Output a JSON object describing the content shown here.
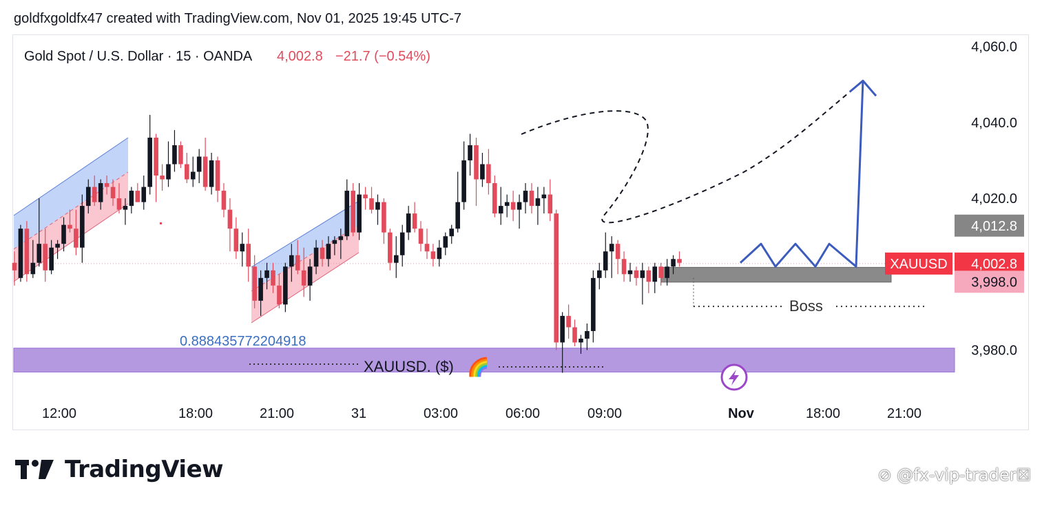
{
  "attribution": "goldfxgoldfx47 created with TradingView.com, Nov 01, 2025 19:45 UTC-7",
  "brand": {
    "name": "TradingView",
    "logo_icon": "tradingview-logo-icon"
  },
  "watermark": "⊘ @fx-vip-trader☒",
  "colors": {
    "up": "#131722",
    "down": "#e14b5c",
    "plan_line": "#3b5bbd",
    "purple_zone": "#b499e0",
    "grey_zone": "#8a8a8a",
    "price_tag": "#f23645",
    "label_pink": "#f6a9bd",
    "axis_tag_grey": "#868686"
  },
  "chart_data": {
    "type": "candlestick",
    "symbol_line": {
      "name": "Gold Spot / U.S. Dollar · 15 · OANDA",
      "last": "4,002.8",
      "change": "−21.7 (−0.54%)"
    },
    "y_axis": {
      "ticks": [
        3980,
        4020,
        4040,
        4060
      ],
      "tick_labels": [
        "3,980.0",
        "4,020.0",
        "4,040.0",
        "4,060.0"
      ],
      "range": [
        3971,
        4069
      ]
    },
    "x_axis": {
      "ticks": [
        "12:00",
        "18:00",
        "21:00",
        "31",
        "03:00",
        "06:00",
        "09:00",
        "Nov",
        "18:00",
        "21:00"
      ]
    },
    "price_tags": [
      {
        "value": 4012.8,
        "label": "4,012.8",
        "style": "grey"
      },
      {
        "value": 4002.8,
        "label": "4,002.8",
        "style": "red",
        "symbol": "XAUUSD"
      },
      {
        "value": 3998.0,
        "label": "3,998.0",
        "style": "pink"
      }
    ],
    "candles": [
      [
        4003,
        4006,
        3997,
        4001
      ],
      [
        3999,
        4013,
        3998,
        4012
      ],
      [
        4012,
        4014,
        3998,
        4000
      ],
      [
        4000,
        4009,
        3999,
        4003
      ],
      [
        4003,
        4020,
        4002,
        4008
      ],
      [
        4008,
        4012,
        3998,
        4001
      ],
      [
        4001,
        4009,
        4000,
        4007
      ],
      [
        4007,
        4009,
        4004,
        4008
      ],
      [
        4008,
        4015,
        4006,
        4013
      ],
      [
        4013,
        4017,
        4011,
        4012
      ],
      [
        4012,
        4017,
        4005,
        4007
      ],
      [
        4007,
        4021,
        4003,
        4018
      ],
      [
        4018,
        4025,
        4016,
        4023
      ],
      [
        4023,
        4026,
        4018,
        4019
      ],
      [
        4019,
        4025,
        4017,
        4024
      ],
      [
        4024,
        4026,
        4021,
        4023
      ],
      [
        4023,
        4025,
        4018,
        4020
      ],
      [
        4020,
        4024,
        4016,
        4017
      ],
      [
        4017,
        4020,
        4013,
        4018
      ],
      [
        4018,
        4023,
        4016,
        4022
      ],
      [
        4022,
        4024,
        4019,
        4019
      ],
      [
        4019,
        4026,
        4017,
        4023
      ],
      [
        4023,
        4042,
        4021,
        4036
      ],
      [
        4036,
        4037,
        4019,
        4026
      ],
      [
        4026,
        4029,
        4022,
        4025
      ],
      [
        4025,
        4035,
        4023,
        4029
      ],
      [
        4029,
        4038,
        4027,
        4034
      ],
      [
        4034,
        4035,
        4028,
        4029
      ],
      [
        4029,
        4032,
        4024,
        4025
      ],
      [
        4025,
        4031,
        4023,
        4027
      ],
      [
        4027,
        4033,
        4024,
        4031
      ],
      [
        4031,
        4036,
        4022,
        4023
      ],
      [
        4023,
        4032,
        4021,
        4030
      ],
      [
        4030,
        4031,
        4019,
        4022
      ],
      [
        4022,
        4024,
        4015,
        4017
      ],
      [
        4017,
        4020,
        4006,
        4012
      ],
      [
        4012,
        4015,
        4004,
        4006
      ],
      [
        4006,
        4011,
        4002,
        4008
      ],
      [
        4008,
        4012,
        3998,
        4002
      ],
      [
        4002,
        4005,
        3991,
        3993
      ],
      [
        3993,
        4001,
        3989,
        3999
      ],
      [
        3999,
        4003,
        3996,
        4001
      ],
      [
        4001,
        4003,
        3995,
        3997
      ],
      [
        3997,
        4000,
        3991,
        3992
      ],
      [
        3992,
        4003,
        3990,
        4002
      ],
      [
        4002,
        4008,
        3998,
        4005
      ],
      [
        4005,
        4009,
        4000,
        4001
      ],
      [
        4001,
        4007,
        3994,
        3997
      ],
      [
        3997,
        4004,
        3993,
        4002
      ],
      [
        4002,
        4009,
        4000,
        4007
      ],
      [
        4007,
        4009,
        4002,
        4004
      ],
      [
        4004,
        4010,
        4002,
        4008
      ],
      [
        4008,
        4010,
        4005,
        4009
      ],
      [
        4009,
        4012,
        4004,
        4010
      ],
      [
        4010,
        4025,
        4009,
        4022
      ],
      [
        4022,
        4024,
        4010,
        4011
      ],
      [
        4011,
        4024,
        4009,
        4021
      ],
      [
        4021,
        4023,
        4017,
        4020
      ],
      [
        4020,
        4023,
        4016,
        4017
      ],
      [
        4017,
        4021,
        4013,
        4019
      ],
      [
        4019,
        4020,
        4008,
        4011
      ],
      [
        4011,
        4012,
        4001,
        4003
      ],
      [
        4003,
        4010,
        3999,
        4005
      ],
      [
        4005,
        4013,
        4002,
        4011
      ],
      [
        4011,
        4018,
        4009,
        4016
      ],
      [
        4016,
        4019,
        4011,
        4012
      ],
      [
        4012,
        4014,
        4006,
        4008
      ],
      [
        4008,
        4012,
        4004,
        4006
      ],
      [
        4006,
        4008,
        4002,
        4004
      ],
      [
        4004,
        4009,
        4002,
        4007
      ],
      [
        4007,
        4011,
        4005,
        4010
      ],
      [
        4010,
        4013,
        4008,
        4012
      ],
      [
        4012,
        4027,
        4011,
        4019
      ],
      [
        4019,
        4035,
        4017,
        4030
      ],
      [
        4030,
        4037,
        4026,
        4034
      ],
      [
        4034,
        4036,
        4018,
        4025
      ],
      [
        4025,
        4032,
        4023,
        4029
      ],
      [
        4029,
        4033,
        4021,
        4024
      ],
      [
        4024,
        4026,
        4015,
        4016
      ],
      [
        4016,
        4023,
        4013,
        4018
      ],
      [
        4018,
        4021,
        4015,
        4019
      ],
      [
        4019,
        4022,
        4014,
        4017
      ],
      [
        4017,
        4021,
        4012,
        4019
      ],
      [
        4019,
        4024,
        4016,
        4022
      ],
      [
        4022,
        4024,
        4016,
        4018
      ],
      [
        4018,
        4023,
        4013,
        4020
      ],
      [
        4020,
        4023,
        4016,
        4021
      ],
      [
        4021,
        4025,
        4014,
        4016
      ],
      [
        4016,
        4017,
        3980,
        3982
      ],
      [
        3982,
        3990,
        3974,
        3989
      ],
      [
        3989,
        3992,
        3983,
        3986
      ],
      [
        3986,
        3988,
        3981,
        3982
      ],
      [
        3982,
        3984,
        3979,
        3983
      ],
      [
        3983,
        3987,
        3980,
        3985
      ],
      [
        3985,
        4001,
        3982,
        3999
      ],
      [
        3999,
        4003,
        3996,
        4001
      ],
      [
        4001,
        4011,
        3999,
        4006
      ],
      [
        4006,
        4010,
        3999,
        4008
      ],
      [
        4008,
        4009,
        4000,
        4004
      ],
      [
        4004,
        4006,
        3998,
        4000
      ],
      [
        4000,
        4003,
        3998,
        4001
      ],
      [
        4001,
        4002,
        3997,
        3999
      ],
      [
        3999,
        4003,
        3992,
        4001
      ],
      [
        4001,
        4002,
        3995,
        3998
      ],
      [
        3998,
        4003,
        3995,
        4002
      ],
      [
        4002,
        4003,
        3997,
        3999
      ],
      [
        3999,
        4004,
        3997,
        4002
      ],
      [
        4002,
        4005,
        4000,
        4004
      ],
      [
        4004,
        4006,
        4002,
        4003
      ]
    ],
    "annotations": {
      "fib_label": "0.888435772204918",
      "purple_zone": {
        "top": 3980.5,
        "bottom": 3974.2,
        "text": "XAUUSD. ($)",
        "emoji": "🌈",
        "icon": "lightning-icon"
      },
      "grey_zone": {
        "top": 4001.8,
        "bottom": 3997.9
      },
      "boss": {
        "label": "Boss",
        "value": 3991.5
      },
      "projection": [
        4003,
        4008,
        4002,
        4008,
        4002,
        4008,
        4002,
        4051
      ],
      "arrow_target": 4051
    }
  }
}
